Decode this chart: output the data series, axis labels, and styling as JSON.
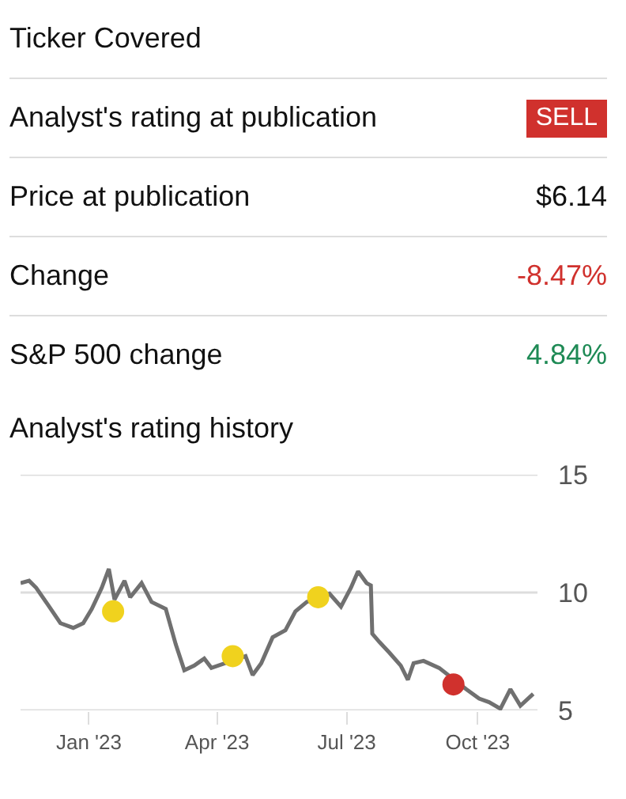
{
  "chart_data": [
    {
      "type": "other",
      "annotations": [
        "Ticker Covered",
        "Analyst's rating at publication",
        "SELL",
        "Price at publication",
        "$6.14",
        "Change",
        "-8.47%",
        "S&P 500 change",
        "4.84%"
      ]
    },
    {
      "type": "line",
      "title": "Analyst's rating history",
      "xlim": [
        "2022-11-14",
        "2023-11-12"
      ],
      "ylim": [
        5,
        15
      ],
      "xticks": [
        {
          "value": "2023-01-01",
          "label": "Jan '23"
        },
        {
          "value": "2023-04-01",
          "label": "Apr '23"
        },
        {
          "value": "2023-07-01",
          "label": "Jul '23"
        },
        {
          "value": "2023-10-01",
          "label": "Oct '23"
        }
      ],
      "yticks": [
        5,
        10,
        15
      ],
      "grid": "y",
      "line_style": "solid",
      "series": [
        {
          "type": "line",
          "color": "#707070",
          "x": [
            "2022-11-14",
            "2022-11-20",
            "2022-11-25",
            "2022-12-03",
            "2022-12-12",
            "2022-12-21",
            "2022-12-28",
            "2023-01-03",
            "2023-01-10",
            "2023-01-15",
            "2023-01-19",
            "2023-01-26",
            "2023-01-30",
            "2023-02-07",
            "2023-02-14",
            "2023-02-24",
            "2023-03-03",
            "2023-03-09",
            "2023-03-16",
            "2023-03-23",
            "2023-03-28",
            "2023-04-21",
            "2023-04-26",
            "2023-05-02",
            "2023-05-10",
            "2023-05-19",
            "2023-05-26",
            "2023-06-03",
            "2023-06-19",
            "2023-06-27",
            "2023-07-04",
            "2023-07-09",
            "2023-07-15",
            "2023-07-18",
            "2023-07-19",
            "2023-07-24",
            "2023-07-31",
            "2023-08-08",
            "2023-08-13",
            "2023-08-17",
            "2023-08-24",
            "2023-09-04",
            "2023-09-23",
            "2023-10-02",
            "2023-10-09",
            "2023-10-17",
            "2023-10-24",
            "2023-10-31",
            "2023-11-09"
          ],
          "values": [
            10.4,
            10.5,
            10.2,
            9.5,
            8.7,
            8.5,
            8.7,
            9.3,
            10.2,
            11.0,
            9.7,
            10.5,
            9.8,
            10.4,
            9.6,
            9.3,
            7.8,
            6.7,
            6.9,
            7.2,
            6.8,
            7.3,
            6.5,
            7.0,
            8.1,
            8.4,
            9.2,
            9.6,
            9.95,
            9.4,
            10.2,
            10.9,
            10.4,
            10.3,
            8.25,
            7.9,
            7.45,
            6.9,
            6.3,
            7.0,
            7.1,
            6.8,
            5.9,
            5.5,
            5.35,
            5.07,
            5.9,
            5.2,
            5.7
          ]
        },
        {
          "type": "scatter",
          "marker": "circle",
          "x": [
            "2023-01-18",
            "2023-04-12",
            "2023-06-11",
            "2023-09-14"
          ],
          "values": [
            9.2,
            7.3,
            9.8,
            6.1
          ],
          "colors": [
            "#f0d21e",
            "#f0d21e",
            "#f0d21e",
            "#d0312d"
          ]
        }
      ]
    }
  ]
}
